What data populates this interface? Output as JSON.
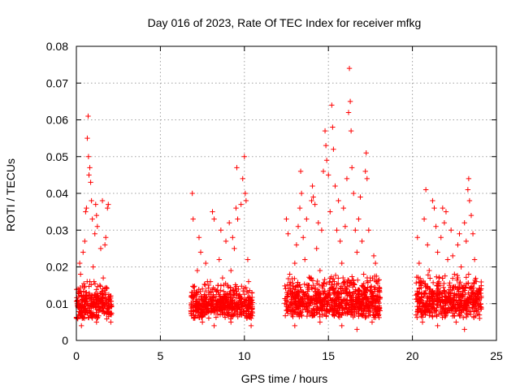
{
  "chart_data": {
    "type": "scatter",
    "title": "Day 016 of 2023, Rate Of TEC Index for receiver mfkg",
    "xlabel": "GPS time / hours",
    "ylabel": "ROTI / TECUs",
    "xlim": [
      0,
      25
    ],
    "ylim": [
      0,
      0.08
    ],
    "xticks": [
      0,
      5,
      10,
      15,
      20,
      25
    ],
    "xtick_labels": [
      "0",
      "5",
      "10",
      "15",
      "20",
      "25"
    ],
    "yticks": [
      0,
      0.01,
      0.02,
      0.03,
      0.04,
      0.05,
      0.06,
      0.07,
      0.08
    ],
    "ytick_labels": [
      "0",
      "0.01",
      "0.02",
      "0.03",
      "0.04",
      "0.05",
      "0.06",
      "0.07",
      "0.08"
    ],
    "grid": true,
    "legend": "none",
    "marker": "+",
    "color": "#ff0000",
    "series": [
      {
        "points": [
          [
            0.05,
            0.01
          ],
          [
            0.1,
            0.014
          ],
          [
            0.15,
            0.012
          ],
          [
            0.2,
            0.021
          ],
          [
            0.25,
            0.018
          ],
          [
            0.3,
            0.008
          ],
          [
            0.35,
            0.006
          ],
          [
            0.4,
            0.024
          ],
          [
            0.45,
            0.011
          ],
          [
            0.5,
            0.027
          ],
          [
            0.55,
            0.035
          ],
          [
            0.6,
            0.036
          ],
          [
            0.65,
            0.055
          ],
          [
            0.7,
            0.061
          ],
          [
            0.72,
            0.05
          ],
          [
            0.75,
            0.045
          ],
          [
            0.8,
            0.047
          ],
          [
            0.85,
            0.043
          ],
          [
            0.9,
            0.038
          ],
          [
            0.95,
            0.033
          ],
          [
            1.0,
            0.02
          ],
          [
            1.05,
            0.016
          ],
          [
            1.1,
            0.029
          ],
          [
            1.15,
            0.037
          ],
          [
            1.2,
            0.034
          ],
          [
            1.25,
            0.031
          ],
          [
            1.3,
            0.012
          ],
          [
            1.35,
            0.009
          ],
          [
            1.4,
            0.015
          ],
          [
            1.45,
            0.025
          ],
          [
            1.5,
            0.013
          ],
          [
            1.55,
            0.038
          ],
          [
            1.6,
            0.017
          ],
          [
            1.65,
            0.01
          ],
          [
            1.7,
            0.026
          ],
          [
            1.75,
            0.028
          ],
          [
            1.8,
            0.011
          ],
          [
            1.85,
            0.036
          ],
          [
            1.9,
            0.037
          ],
          [
            2.0,
            0.012
          ],
          [
            2.05,
            0.005
          ],
          [
            0.3,
            0.004
          ],
          [
            1.2,
            0.005
          ],
          [
            0.8,
            0.016
          ],
          [
            0.6,
            0.013
          ],
          [
            6.9,
            0.04
          ],
          [
            6.95,
            0.033
          ],
          [
            7.0,
            0.012
          ],
          [
            7.1,
            0.009
          ],
          [
            7.2,
            0.019
          ],
          [
            7.3,
            0.028
          ],
          [
            7.4,
            0.024
          ],
          [
            7.5,
            0.014
          ],
          [
            7.6,
            0.01
          ],
          [
            7.7,
            0.021
          ],
          [
            7.8,
            0.016
          ],
          [
            7.9,
            0.008
          ],
          [
            8.0,
            0.013
          ],
          [
            8.1,
            0.035
          ],
          [
            8.2,
            0.033
          ],
          [
            8.3,
            0.011
          ],
          [
            8.4,
            0.009
          ],
          [
            8.5,
            0.022
          ],
          [
            8.6,
            0.03
          ],
          [
            8.7,
            0.017
          ],
          [
            8.8,
            0.012
          ],
          [
            8.9,
            0.027
          ],
          [
            9.0,
            0.015
          ],
          [
            9.1,
            0.032
          ],
          [
            9.2,
            0.019
          ],
          [
            9.3,
            0.028
          ],
          [
            9.4,
            0.025
          ],
          [
            9.5,
            0.036
          ],
          [
            9.55,
            0.047
          ],
          [
            9.6,
            0.033
          ],
          [
            9.7,
            0.012
          ],
          [
            9.8,
            0.037
          ],
          [
            9.9,
            0.044
          ],
          [
            10.0,
            0.05
          ],
          [
            10.05,
            0.04
          ],
          [
            10.1,
            0.038
          ],
          [
            10.2,
            0.022
          ],
          [
            10.25,
            0.016
          ],
          [
            10.3,
            0.009
          ],
          [
            10.4,
            0.007
          ],
          [
            10.45,
            0.011
          ],
          [
            8.2,
            0.004
          ],
          [
            9.2,
            0.005
          ],
          [
            7.5,
            0.005
          ],
          [
            10.4,
            0.004
          ],
          [
            12.5,
            0.033
          ],
          [
            12.6,
            0.029
          ],
          [
            12.7,
            0.018
          ],
          [
            12.8,
            0.012
          ],
          [
            12.9,
            0.008
          ],
          [
            13.0,
            0.021
          ],
          [
            13.1,
            0.026
          ],
          [
            13.2,
            0.031
          ],
          [
            13.3,
            0.036
          ],
          [
            13.35,
            0.046
          ],
          [
            13.4,
            0.04
          ],
          [
            13.5,
            0.028
          ],
          [
            13.6,
            0.022
          ],
          [
            13.7,
            0.033
          ],
          [
            13.8,
            0.015
          ],
          [
            13.9,
            0.011
          ],
          [
            14.0,
            0.038
          ],
          [
            14.05,
            0.042
          ],
          [
            14.1,
            0.039
          ],
          [
            14.2,
            0.037
          ],
          [
            14.3,
            0.025
          ],
          [
            14.4,
            0.032
          ],
          [
            14.5,
            0.019
          ],
          [
            14.6,
            0.03
          ],
          [
            14.7,
            0.046
          ],
          [
            14.8,
            0.057
          ],
          [
            14.85,
            0.053
          ],
          [
            14.9,
            0.049
          ],
          [
            15.0,
            0.045
          ],
          [
            15.1,
            0.035
          ],
          [
            15.2,
            0.064
          ],
          [
            15.25,
            0.058
          ],
          [
            15.3,
            0.052
          ],
          [
            15.4,
            0.042
          ],
          [
            15.5,
            0.03
          ],
          [
            15.6,
            0.038
          ],
          [
            15.7,
            0.027
          ],
          [
            15.8,
            0.021
          ],
          [
            15.9,
            0.036
          ],
          [
            16.0,
            0.031
          ],
          [
            16.1,
            0.044
          ],
          [
            16.2,
            0.062
          ],
          [
            16.25,
            0.074
          ],
          [
            16.3,
            0.065
          ],
          [
            16.35,
            0.057
          ],
          [
            16.4,
            0.047
          ],
          [
            16.5,
            0.04
          ],
          [
            16.6,
            0.03
          ],
          [
            16.7,
            0.024
          ],
          [
            16.8,
            0.033
          ],
          [
            16.9,
            0.039
          ],
          [
            17.0,
            0.027
          ],
          [
            17.1,
            0.018
          ],
          [
            17.2,
            0.046
          ],
          [
            17.25,
            0.051
          ],
          [
            17.3,
            0.044
          ],
          [
            17.4,
            0.03
          ],
          [
            17.5,
            0.017
          ],
          [
            17.6,
            0.012
          ],
          [
            17.7,
            0.023
          ],
          [
            17.8,
            0.021
          ],
          [
            17.9,
            0.009
          ],
          [
            18.0,
            0.007
          ],
          [
            13.0,
            0.004
          ],
          [
            14.5,
            0.005
          ],
          [
            15.8,
            0.004
          ],
          [
            16.7,
            0.003
          ],
          [
            17.6,
            0.005
          ],
          [
            14.2,
            0.012
          ],
          [
            15.4,
            0.013
          ],
          [
            20.3,
            0.028
          ],
          [
            20.4,
            0.021
          ],
          [
            20.5,
            0.015
          ],
          [
            20.6,
            0.01
          ],
          [
            20.7,
            0.033
          ],
          [
            20.8,
            0.041
          ],
          [
            20.9,
            0.026
          ],
          [
            21.0,
            0.019
          ],
          [
            21.1,
            0.013
          ],
          [
            21.2,
            0.038
          ],
          [
            21.3,
            0.036
          ],
          [
            21.4,
            0.031
          ],
          [
            21.5,
            0.024
          ],
          [
            21.6,
            0.017
          ],
          [
            21.7,
            0.028
          ],
          [
            21.8,
            0.036
          ],
          [
            21.9,
            0.032
          ],
          [
            22.0,
            0.035
          ],
          [
            22.1,
            0.022
          ],
          [
            22.2,
            0.015
          ],
          [
            22.3,
            0.03
          ],
          [
            22.4,
            0.023
          ],
          [
            22.5,
            0.018
          ],
          [
            22.6,
            0.011
          ],
          [
            22.7,
            0.026
          ],
          [
            22.8,
            0.029
          ],
          [
            22.9,
            0.02
          ],
          [
            23.0,
            0.014
          ],
          [
            23.1,
            0.032
          ],
          [
            23.2,
            0.027
          ],
          [
            23.3,
            0.041
          ],
          [
            23.35,
            0.044
          ],
          [
            23.4,
            0.038
          ],
          [
            23.5,
            0.034
          ],
          [
            23.6,
            0.029
          ],
          [
            23.7,
            0.022
          ],
          [
            23.8,
            0.016
          ],
          [
            23.9,
            0.01
          ],
          [
            24.0,
            0.006
          ],
          [
            21.5,
            0.004
          ],
          [
            22.6,
            0.005
          ],
          [
            23.1,
            0.003
          ],
          [
            20.6,
            0.005
          ],
          [
            21.9,
            0.013
          ],
          [
            23.5,
            0.012
          ]
        ]
      }
    ],
    "dense_bands": [
      {
        "x_start": 0.0,
        "x_end": 2.1,
        "y_low": 0.004,
        "y_high": 0.016
      },
      {
        "x_start": 6.8,
        "x_end": 10.5,
        "y_low": 0.004,
        "y_high": 0.016
      },
      {
        "x_start": 12.4,
        "x_end": 18.1,
        "y_low": 0.004,
        "y_high": 0.018
      },
      {
        "x_start": 20.2,
        "x_end": 24.1,
        "y_low": 0.004,
        "y_high": 0.018
      }
    ]
  }
}
